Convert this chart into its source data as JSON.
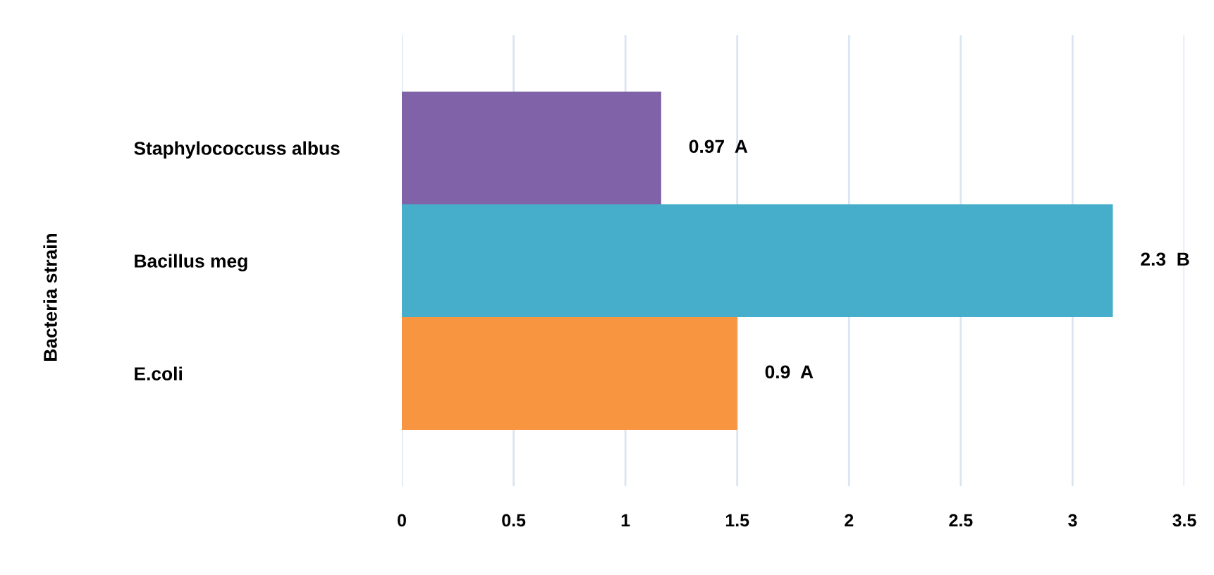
{
  "chart_data": {
    "type": "bar",
    "orientation": "horizontal",
    "ylabel": "Bacteria strain",
    "categories": [
      "Staphylococcuss albus",
      "Bacillus meg",
      "E.coli"
    ],
    "values": [
      1.16,
      3.18,
      1.5
    ],
    "colors": [
      "#7f62a7",
      "#46aecb",
      "#f79540"
    ],
    "annotations": [
      {
        "text": "0.97  A",
        "x": 1.16,
        "y": "Staphylococcuss albus"
      },
      {
        "text": "2.3  B",
        "x": 3.18,
        "y": "Bacillus meg"
      },
      {
        "text": "0.9  A",
        "x": 1.5,
        "y": "E.coli"
      }
    ],
    "xlim": [
      0,
      3.5
    ],
    "xticks": [
      0,
      0.5,
      1,
      1.5,
      2,
      2.5,
      3,
      3.5
    ],
    "grid": "x"
  }
}
